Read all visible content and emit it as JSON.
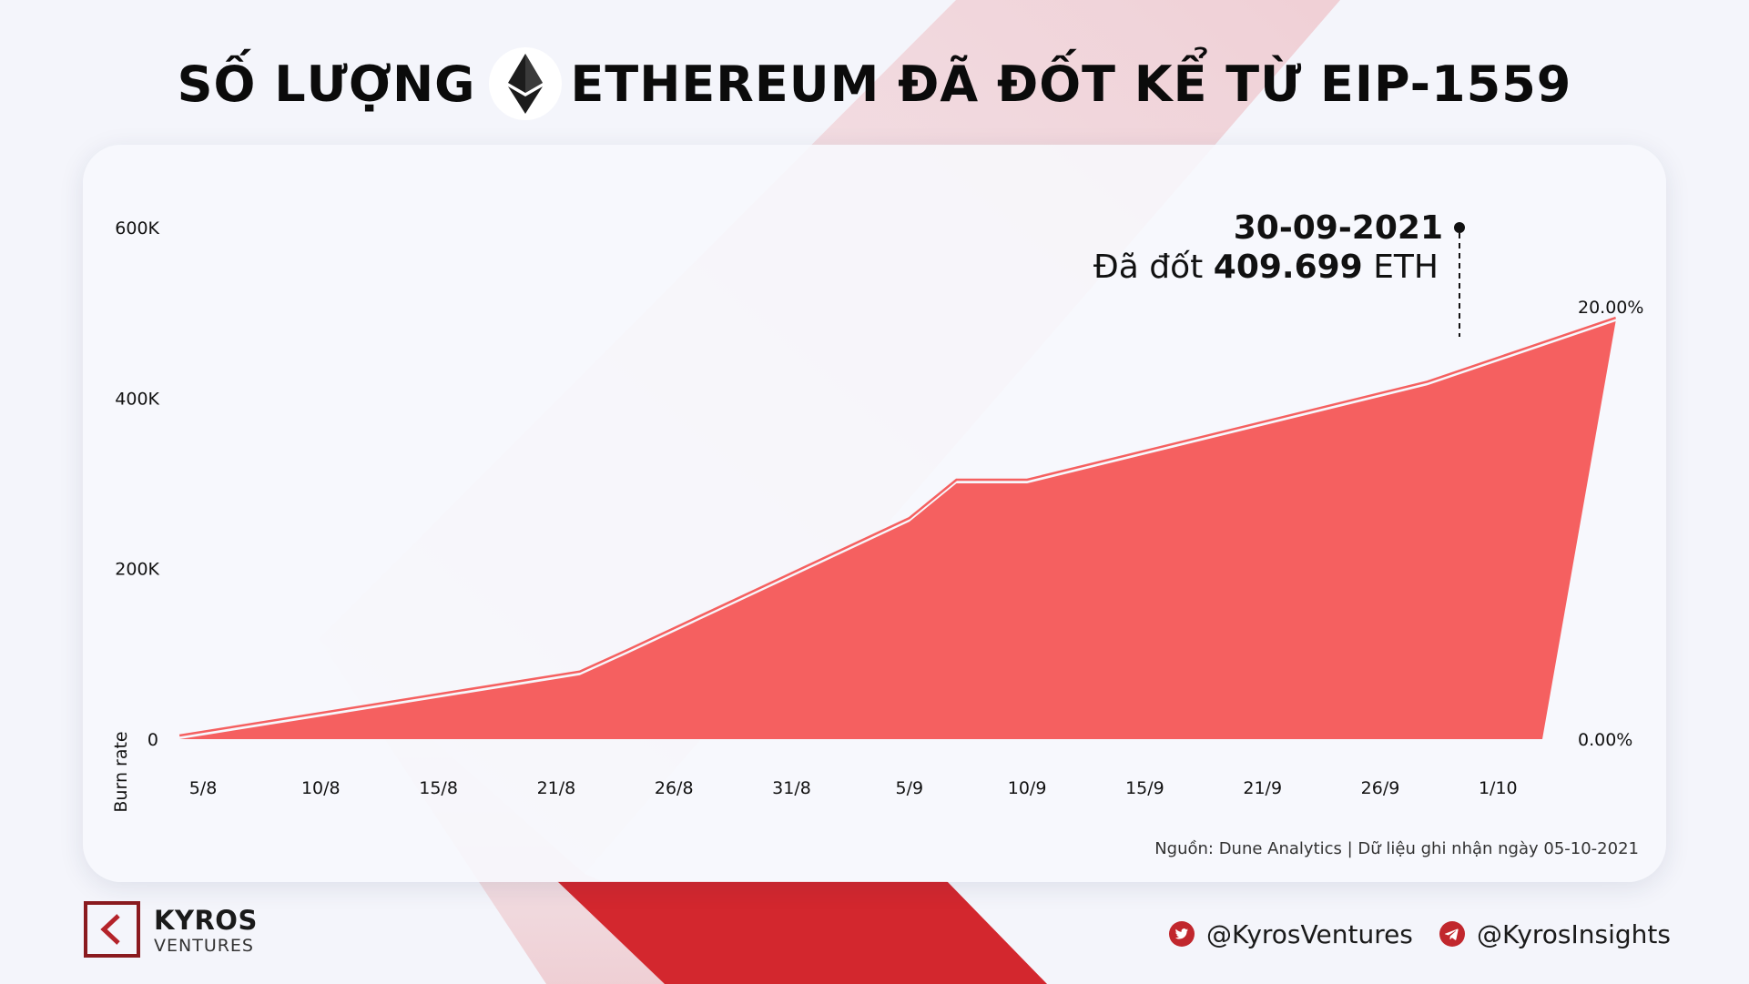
{
  "header": {
    "title_left": "SỐ LƯỢNG",
    "title_right": "ETHEREUM ĐÃ ĐỐT KỂ TỪ EIP-1559",
    "logo_icon": "ethereum-icon"
  },
  "colors": {
    "accent_red": "#d3272e",
    "area_fill": "#f56060",
    "text_dark": "#111111"
  },
  "chart_data": {
    "type": "area",
    "title": "SỐ LƯỢNG ETHEREUM ĐÃ ĐỐT KỂ TỪ EIP-1559",
    "xlabel": "",
    "ylabel": "Burn rate",
    "y_ticks": [
      "600K",
      "400K",
      "200K",
      "0"
    ],
    "y_tick_values": [
      600000,
      400000,
      200000,
      0
    ],
    "y2_ticks": [
      "20.00%",
      "0.00%"
    ],
    "x_tick_labels": [
      "5/8",
      "10/8",
      "15/8",
      "21/8",
      "26/8",
      "31/8",
      "5/9",
      "10/9",
      "15/9",
      "21/9",
      "26/9",
      "1/10"
    ],
    "ylim": [
      0,
      600000
    ],
    "grid": false,
    "series": [
      {
        "x": [
          "4/8",
          "21/8",
          "23/8",
          "4/9",
          "6/9",
          "9/9",
          "26/9",
          "4/10"
        ],
        "values": [
          0,
          75000,
          100000,
          255000,
          300000,
          300000,
          415000,
          490000
        ]
      }
    ],
    "annotation": {
      "date": "30-09-2021",
      "text_prefix": "Đã đốt",
      "value": "409.699",
      "unit": "ETH"
    }
  },
  "footer": {
    "source": "Nguồn: Dune Analytics | Dữ liệu ghi nhận ngày 05-10-2021",
    "brand_name": "KYROS",
    "brand_sub": "VENTURES",
    "twitter_icon": "twitter-icon",
    "twitter": "@KyrosVentures",
    "telegram_icon": "telegram-icon",
    "telegram": "@KyrosInsights"
  }
}
